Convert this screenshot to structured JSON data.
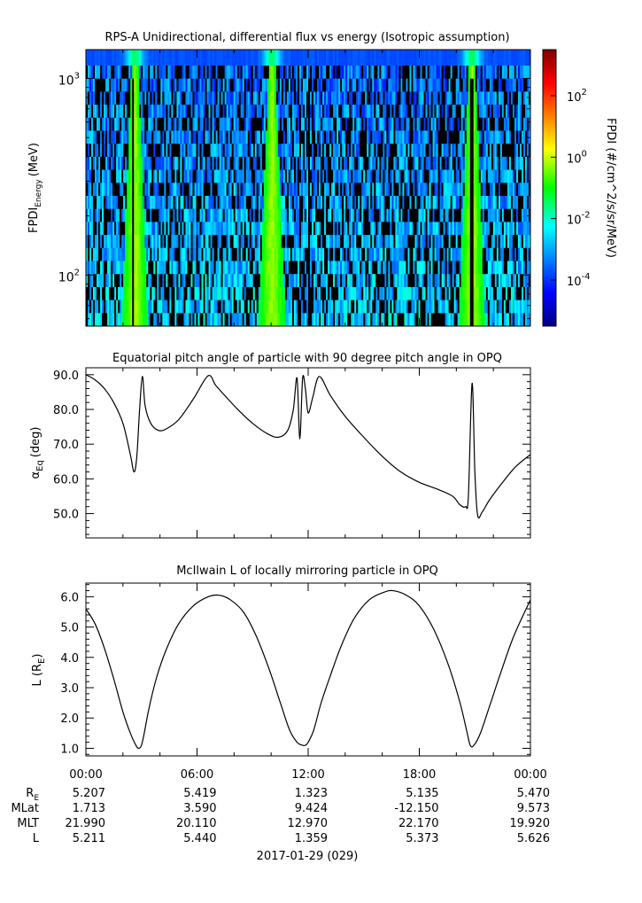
{
  "chart_data": [
    {
      "type": "heatmap",
      "title": "RPS-A Unidirectional, differential flux vs energy (Isotropic assumption)",
      "ylabel_main": "FPDI",
      "ylabel_sub": "Energy",
      "ylabel_unit": "(MeV)",
      "yscale": "log",
      "ylim": [
        55,
        1400
      ],
      "y_ticks": [
        {
          "value": 100,
          "base": "10",
          "exp": "2"
        },
        {
          "value": 1000,
          "base": "10",
          "exp": "3"
        }
      ],
      "energy_bins": 20,
      "time_bins": 250,
      "bright_hours": [
        2.6,
        10.0,
        20.8
      ],
      "dark_hours": [
        2.5,
        12.0,
        20.8
      ],
      "colorbar": {
        "label": "FPDI (#/cm^2/s/sr/MeV)",
        "scale": "log",
        "range_exp": [
          -5.5,
          3.5
        ],
        "ticks": [
          {
            "value_exp": 2,
            "base": "10",
            "exp": "2"
          },
          {
            "value_exp": 0,
            "base": "10",
            "exp": "0"
          },
          {
            "value_exp": -2,
            "base": "10",
            "exp": "-2"
          },
          {
            "value_exp": -4,
            "base": "10",
            "exp": "-4"
          }
        ]
      }
    },
    {
      "type": "line",
      "title": "Equatorial pitch angle of particle with 90 degree pitch angle in OPQ",
      "ylabel_base": "α",
      "ylabel_sub": "Eq",
      "ylabel_unit": "(deg)",
      "ylim": [
        43,
        92
      ],
      "y_ticks": [
        50.0,
        60.0,
        70.0,
        80.0,
        90.0
      ],
      "x_hours": [
        0,
        0.5,
        1.0,
        1.5,
        2.0,
        2.4,
        2.6,
        2.75,
        2.9,
        3.05,
        3.2,
        3.5,
        3.9,
        4.3,
        5.0,
        5.8,
        6.6,
        7.0,
        7.5,
        8.2,
        9.0,
        9.8,
        10.4,
        10.9,
        11.2,
        11.4,
        11.55,
        11.7,
        11.85,
        12.0,
        12.25,
        12.6,
        13.2,
        14.0,
        15.0,
        16.0,
        17.0,
        18.0,
        19.0,
        19.8,
        20.2,
        20.5,
        20.65,
        20.85,
        21.0,
        21.15,
        21.4,
        21.8,
        22.5,
        23.2,
        24.0
      ],
      "values": [
        90.0,
        88.5,
        86.0,
        82.0,
        76.0,
        67.0,
        62.0,
        66.5,
        80.0,
        89.5,
        81.0,
        76.0,
        74.0,
        74.3,
        77.0,
        83.0,
        89.7,
        87.0,
        84.0,
        80.0,
        76.0,
        73.0,
        72.0,
        74.0,
        80.0,
        89.0,
        71.5,
        89.0,
        86.0,
        79.0,
        83.5,
        89.5,
        84.0,
        78.0,
        72.0,
        66.5,
        62.0,
        59.0,
        57.0,
        55.0,
        52.5,
        52.0,
        55.0,
        87.5,
        62.0,
        49.5,
        50.5,
        54.0,
        59.0,
        63.5,
        67.0
      ]
    },
    {
      "type": "line",
      "title": "McIlwain L of locally mirroring particle in OPQ",
      "ylabel_base": "L (R",
      "ylabel_sub": "E",
      "ylabel_close": ")",
      "ylim": [
        0.75,
        6.45
      ],
      "y_ticks": [
        1.0,
        2.0,
        3.0,
        4.0,
        5.0,
        6.0
      ],
      "x_hours": [
        0,
        0.5,
        1.0,
        1.5,
        2.0,
        2.4,
        2.7,
        2.85,
        3.0,
        3.15,
        3.4,
        3.8,
        4.3,
        5.0,
        5.8,
        6.6,
        7.2,
        7.8,
        8.5,
        9.2,
        9.9,
        10.5,
        11.0,
        11.4,
        11.7,
        11.85,
        12.0,
        12.3,
        12.7,
        13.2,
        13.8,
        14.5,
        15.3,
        16.1,
        16.6,
        17.3,
        18.0,
        18.8,
        19.6,
        20.2,
        20.55,
        20.75,
        20.95,
        21.3,
        21.8,
        22.4,
        23.1,
        24.0
      ],
      "values": [
        5.6,
        5.1,
        4.3,
        3.3,
        2.2,
        1.5,
        1.1,
        1.0,
        1.1,
        1.5,
        2.3,
        3.3,
        4.2,
        5.1,
        5.7,
        6.0,
        6.05,
        5.9,
        5.5,
        4.7,
        3.6,
        2.5,
        1.6,
        1.2,
        1.1,
        1.1,
        1.2,
        1.6,
        2.5,
        3.4,
        4.4,
        5.3,
        5.9,
        6.15,
        6.2,
        6.05,
        5.7,
        4.9,
        3.7,
        2.5,
        1.6,
        1.1,
        1.1,
        1.5,
        2.4,
        3.5,
        4.7,
        5.9
      ]
    }
  ],
  "x_axis": {
    "range_hours": [
      0,
      24
    ],
    "tick_labels": [
      {
        "hour": 0,
        "label": "00:00"
      },
      {
        "hour": 6,
        "label": "06:00"
      },
      {
        "hour": 12,
        "label": "12:00"
      },
      {
        "hour": 18,
        "label": "18:00"
      },
      {
        "hour": 24,
        "label": "00:00"
      }
    ],
    "minor_tick_hours": [
      2,
      4,
      8,
      10,
      14,
      16,
      20,
      22
    ]
  },
  "ephemeris": {
    "rows": [
      {
        "label": "R",
        "label_sub": "E",
        "values": [
          "5.207",
          "5.419",
          "1.323",
          "5.135",
          "5.470"
        ]
      },
      {
        "label": "MLat",
        "label_sub": "",
        "values": [
          "1.713",
          "3.590",
          "9.424",
          "-12.150",
          "9.573"
        ]
      },
      {
        "label": "MLT",
        "label_sub": "",
        "values": [
          "21.990",
          "20.110",
          "12.970",
          "22.170",
          "19.920"
        ]
      },
      {
        "label": "L",
        "label_sub": "",
        "values": [
          "5.211",
          "5.440",
          "1.359",
          "5.373",
          "5.626"
        ]
      }
    ]
  },
  "date_label": "2017-01-29 (029)"
}
